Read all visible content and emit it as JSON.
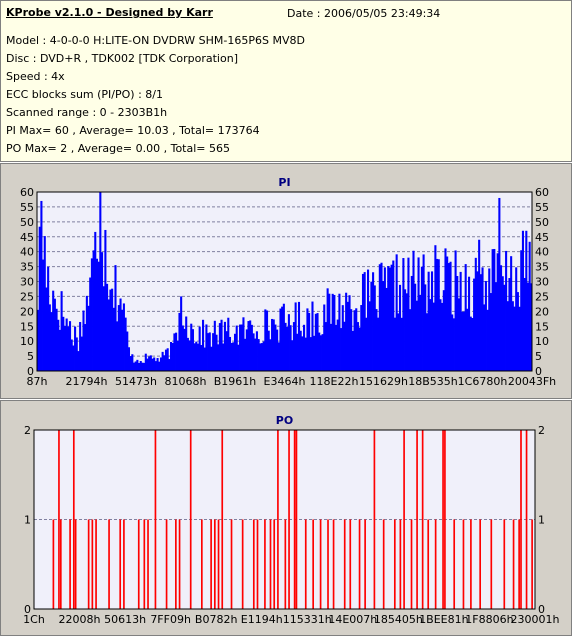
{
  "info": {
    "title": "KProbe v2.1.0 - Designed by Karr",
    "date": "Date : 2006/05/05 23:49:34",
    "lines": [
      "Model : 4-0-0-0 H:LITE-ON DVDRW SHM-165P6S MV8D",
      "Disc : DVD+R , TDK002 [TDK Corporation]",
      "Speed : 4x",
      "ECC blocks sum (PI/PO) : 8/1",
      "Scanned range : 0 - 2303B1h",
      "PI Max= 60 , Average= 10.03 , Total= 173764",
      "PO Max= 2 , Average= 0.00 , Total= 565"
    ]
  },
  "colors": {
    "pi_bar": "#0000ff",
    "po_bar": "#ff0000",
    "plot_bg": "#f0f0fa",
    "panel_bg": "#d4d0c8",
    "info_bg": "#ffffe7"
  },
  "chart_data": [
    {
      "type": "bar",
      "title": "PI",
      "ylim": [
        0,
        60
      ],
      "yticks": [
        0,
        5,
        10,
        15,
        20,
        25,
        30,
        35,
        40,
        45,
        50,
        55,
        60
      ],
      "xtick_labels": [
        "87h",
        "21794h",
        "51473h",
        "81068h",
        "B1961h",
        "E3464h",
        "118E22h",
        "151629h",
        "18B535h",
        "1C6780h",
        "20043Fh"
      ],
      "grid": true,
      "profile": [
        [
          0,
          28
        ],
        [
          2,
          55
        ],
        [
          5,
          35
        ],
        [
          10,
          26
        ],
        [
          14,
          22
        ],
        [
          17,
          18
        ],
        [
          20,
          14
        ],
        [
          24,
          12
        ],
        [
          28,
          22
        ],
        [
          31,
          30
        ],
        [
          34,
          42
        ],
        [
          37,
          60
        ],
        [
          39,
          48
        ],
        [
          42,
          38
        ],
        [
          46,
          30
        ],
        [
          50,
          24
        ],
        [
          53,
          12
        ],
        [
          55,
          5
        ],
        [
          60,
          4
        ],
        [
          68,
          5
        ],
        [
          72,
          4
        ],
        [
          76,
          6
        ],
        [
          80,
          8
        ],
        [
          83,
          16
        ],
        [
          86,
          24
        ],
        [
          89,
          18
        ],
        [
          92,
          14
        ],
        [
          100,
          13
        ],
        [
          110,
          14
        ],
        [
          120,
          14
        ],
        [
          130,
          16
        ],
        [
          140,
          17
        ],
        [
          150,
          18
        ],
        [
          160,
          19
        ],
        [
          170,
          21
        ],
        [
          180,
          23
        ],
        [
          190,
          25
        ],
        [
          200,
          27
        ],
        [
          210,
          30
        ],
        [
          220,
          31
        ],
        [
          230,
          33
        ],
        [
          240,
          33
        ],
        [
          250,
          31
        ],
        [
          260,
          32
        ],
        [
          270,
          33
        ],
        [
          278,
          32
        ],
        [
          285,
          34
        ],
        [
          290,
          38
        ],
        [
          293,
          32
        ]
      ],
      "spikes": [
        [
          2,
          57
        ],
        [
          37,
          60
        ],
        [
          85,
          25
        ],
        [
          262,
          44
        ],
        [
          274,
          58
        ],
        [
          290,
          47
        ]
      ]
    },
    {
      "type": "bar",
      "title": "PO",
      "ylim": [
        0,
        2
      ],
      "yticks": [
        0,
        1,
        2
      ],
      "xtick_labels": [
        "1Ch",
        "22008h",
        "50613h",
        "7FF09h",
        "B0782h",
        "E1194h",
        "115331h",
        "14E007h",
        "185405h",
        "1BEE81h",
        "1F8806h",
        "230001h"
      ],
      "grid": true,
      "events_2": [
        13,
        21,
        65,
        84,
        101,
        131,
        137,
        140,
        141,
        183,
        199,
        206,
        209,
        220,
        221,
        262,
        265
      ],
      "events_1": [
        10,
        14,
        19,
        22,
        29,
        31,
        33,
        40,
        46,
        48,
        56,
        59,
        61,
        71,
        76,
        78,
        90,
        95,
        97,
        99,
        106,
        112,
        118,
        120,
        124,
        127,
        129,
        135,
        146,
        150,
        154,
        158,
        161,
        167,
        170,
        175,
        178,
        188,
        194,
        197,
        203,
        212,
        216,
        226,
        231,
        235,
        240,
        246,
        253,
        258,
        261,
        268
      ]
    }
  ]
}
